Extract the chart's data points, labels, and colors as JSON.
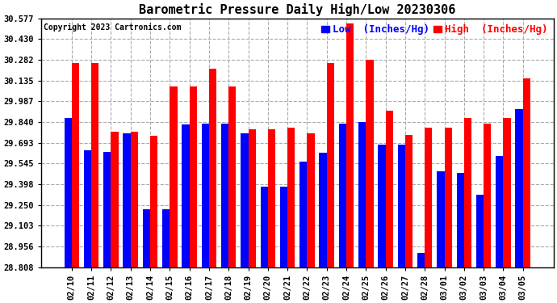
{
  "title": "Barometric Pressure Daily High/Low 20230306",
  "copyright": "Copyright 2023 Cartronics.com",
  "legend_low_label": "Low  (Inches/Hg)",
  "legend_high_label": "High  (Inches/Hg)",
  "dates": [
    "02/10",
    "02/11",
    "02/12",
    "02/13",
    "02/14",
    "02/15",
    "02/16",
    "02/17",
    "02/18",
    "02/19",
    "02/20",
    "02/21",
    "02/22",
    "02/23",
    "02/24",
    "02/25",
    "02/26",
    "02/27",
    "02/28",
    "03/01",
    "03/02",
    "03/03",
    "03/04",
    "03/05"
  ],
  "low_values": [
    29.87,
    29.64,
    29.63,
    29.76,
    29.22,
    29.22,
    29.82,
    29.83,
    29.83,
    29.76,
    29.38,
    29.38,
    29.56,
    29.62,
    29.83,
    29.84,
    29.68,
    29.68,
    28.91,
    29.49,
    29.48,
    29.32,
    29.6,
    29.93
  ],
  "high_values": [
    30.26,
    30.26,
    29.77,
    29.77,
    29.74,
    30.09,
    30.09,
    30.22,
    30.09,
    29.79,
    29.79,
    29.8,
    29.76,
    30.26,
    30.54,
    30.28,
    29.92,
    29.75,
    29.8,
    29.8,
    29.87,
    29.83,
    29.87,
    30.15
  ],
  "ymin": 28.808,
  "ymax": 30.577,
  "yticks": [
    28.808,
    28.956,
    29.103,
    29.25,
    29.398,
    29.545,
    29.693,
    29.84,
    29.987,
    30.135,
    30.282,
    30.43,
    30.577
  ],
  "low_color": "#0000ff",
  "high_color": "#ff0000",
  "bg_color": "#ffffff",
  "grid_color": "#aaaaaa",
  "bar_width": 0.38,
  "title_fontsize": 11,
  "tick_fontsize": 7.5,
  "legend_fontsize": 9
}
